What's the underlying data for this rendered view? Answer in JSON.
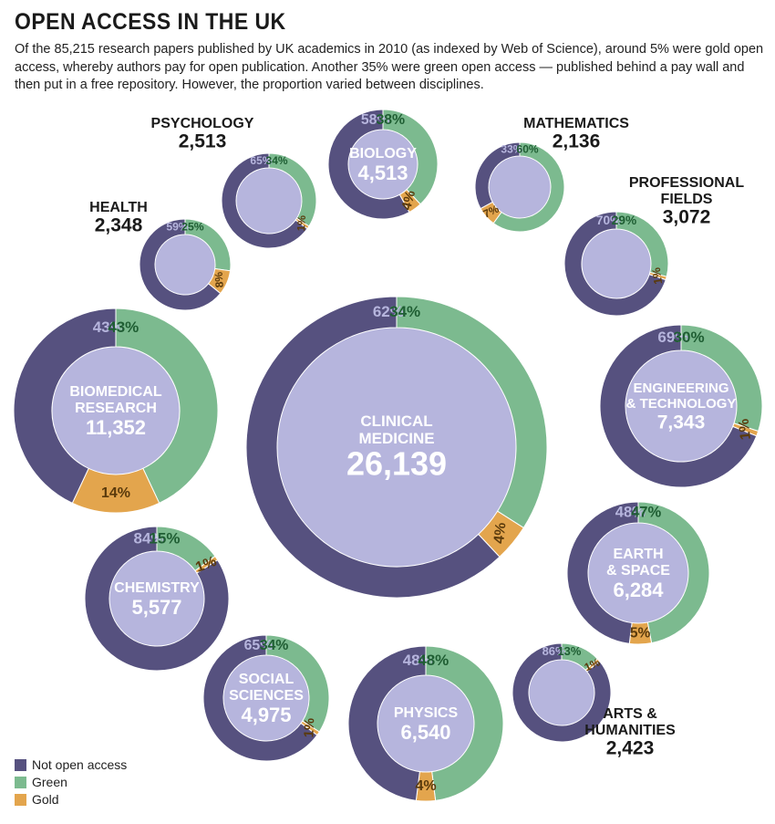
{
  "title": "OPEN ACCESS IN THE UK",
  "subtitle": "Of the 85,215 research papers published by UK academics in 2010 (as indexed by Web of Science), around 5% were gold open access, whereby authors pay for open publication. Another 35% were green open access — published behind a pay wall and then put in a free repository. However, the proportion varied between disciplines.",
  "colors": {
    "not_open": "#56517f",
    "green": "#7cba8f",
    "gold": "#e3a54d",
    "center": "#b6b5dd",
    "label_dark": "#1a1a1a",
    "pct_not_open": "#b6b5dd",
    "pct_green": "#1f5e33",
    "pct_gold": "#5a3a0c",
    "center_text": "#ffffff"
  },
  "legend": [
    {
      "label": "Not open access",
      "color": "#56517f"
    },
    {
      "label": "Green",
      "color": "#7cba8f"
    },
    {
      "label": "Gold",
      "color": "#e3a54d"
    }
  ],
  "chart_data": {
    "type": "pie",
    "series_names": [
      "Not open access",
      "Green",
      "Gold"
    ],
    "disciplines": [
      {
        "name": [
          "PSYCHOLOGY"
        ],
        "total": "2,513",
        "not_open": 65,
        "green": 34,
        "gold": 1
      },
      {
        "name": [
          "BIOLOGY"
        ],
        "total": "4,513",
        "not_open": 58,
        "green": 38,
        "gold": 4
      },
      {
        "name": [
          "MATHEMATICS"
        ],
        "total": "2,136",
        "not_open": 33,
        "green": 60,
        "gold": 7
      },
      {
        "name": [
          "HEALTH"
        ],
        "total": "2,348",
        "not_open": 59,
        "green": 25,
        "gold": 8
      },
      {
        "name": [
          "PROFESSIONAL",
          "FIELDS"
        ],
        "total": "3,072",
        "not_open": 70,
        "green": 29,
        "gold": 1
      },
      {
        "name": [
          "BIOMEDICAL",
          "RESEARCH"
        ],
        "total": "11,352",
        "not_open": 43,
        "green": 43,
        "gold": 14
      },
      {
        "name": [
          "CLINICAL",
          "MEDICINE"
        ],
        "total": "26,139",
        "not_open": 62,
        "green": 34,
        "gold": 4
      },
      {
        "name": [
          "ENGINEERING",
          "& TECHNOLOGY"
        ],
        "total": "7,343",
        "not_open": 69,
        "green": 30,
        "gold": 1
      },
      {
        "name": [
          "CHEMISTRY"
        ],
        "total": "5,577",
        "not_open": 84,
        "green": 15,
        "gold": 1
      },
      {
        "name": [
          "EARTH",
          "& SPACE"
        ],
        "total": "6,284",
        "not_open": 48,
        "green": 47,
        "gold": 5
      },
      {
        "name": [
          "ARTS &",
          "HUMANITIES"
        ],
        "total": "2,423",
        "not_open": 86,
        "green": 13,
        "gold": 1
      },
      {
        "name": [
          "SOCIAL",
          "SCIENCES"
        ],
        "total": "4,975",
        "not_open": 65,
        "green": 34,
        "gold": 1
      },
      {
        "name": [
          "PHYSICS"
        ],
        "total": "6,540",
        "not_open": 48,
        "green": 48,
        "gold": 4
      }
    ]
  }
}
